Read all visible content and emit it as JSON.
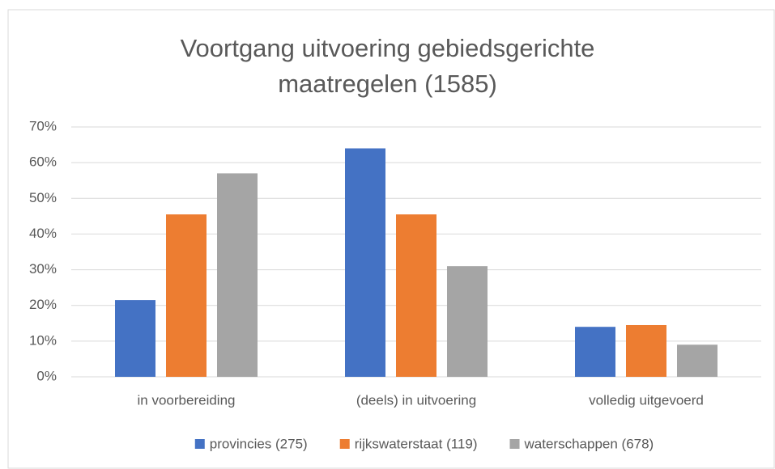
{
  "chart_data": {
    "type": "bar",
    "title": "Voortgang uitvoering gebiedsgerichte maatregelen (1585)",
    "categories": [
      "in voorbereiding",
      "(deels) in uitvoering",
      "volledig uitgevoerd"
    ],
    "series": [
      {
        "name": "provincies (275)",
        "color": "#4472c4",
        "values": [
          21.5,
          64,
          14
        ]
      },
      {
        "name": "rijkswaterstaat (119)",
        "color": "#ed7d31",
        "values": [
          45.5,
          45.5,
          14.5
        ]
      },
      {
        "name": "waterschappen (678)",
        "color": "#a5a5a5",
        "values": [
          57,
          31,
          9
        ]
      }
    ],
    "ylim": [
      0,
      70
    ],
    "yticks": [
      {
        "value": 0,
        "label": "0%"
      },
      {
        "value": 10,
        "label": "10%"
      },
      {
        "value": 20,
        "label": "20%"
      },
      {
        "value": 30,
        "label": "30%"
      },
      {
        "value": 40,
        "label": "40%"
      },
      {
        "value": 50,
        "label": "50%"
      },
      {
        "value": 60,
        "label": "60%"
      },
      {
        "value": 70,
        "label": "70%"
      }
    ],
    "grid": true,
    "legend": "bottom"
  }
}
